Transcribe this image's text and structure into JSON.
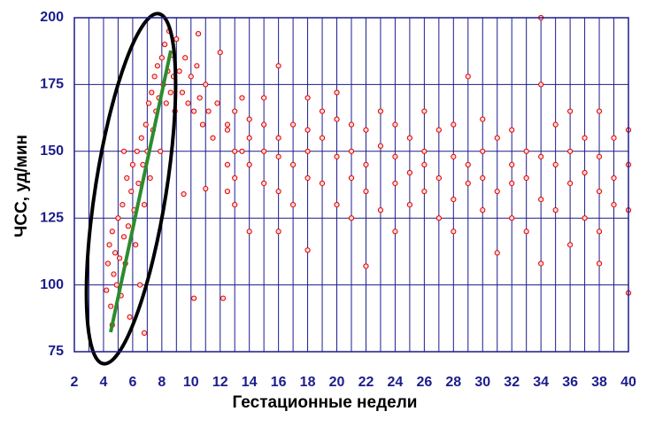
{
  "chart_data": {
    "type": "scatter",
    "x_label": "Гестационные недели",
    "y_label": "ЧСС, уд/мин",
    "xlim": [
      2,
      40
    ],
    "ylim": [
      75,
      200
    ],
    "xticks": [
      2,
      4,
      6,
      8,
      10,
      12,
      14,
      16,
      18,
      20,
      22,
      24,
      26,
      28,
      30,
      32,
      34,
      36,
      38,
      40
    ],
    "x_minor_ticks": [
      3,
      5,
      7,
      9,
      11,
      13,
      15,
      17,
      19,
      21,
      23,
      25,
      27,
      29,
      31,
      33,
      35,
      37,
      39
    ],
    "yticks": [
      75,
      100,
      125,
      150,
      175,
      200
    ],
    "grid": true,
    "color": "#e00000",
    "x": [
      4.2,
      4.3,
      4.4,
      4.5,
      4.6,
      4.7,
      4.8,
      4.9,
      5.0,
      5.1,
      5.2,
      5.3,
      5.4,
      5.5,
      5.6,
      5.7,
      5.8,
      5.9,
      6.0,
      6.1,
      6.2,
      6.3,
      6.4,
      6.5,
      6.6,
      6.7,
      6.8,
      6.9,
      7.0,
      7.1,
      7.2,
      7.3,
      7.4,
      7.5,
      7.6,
      7.7,
      7.8,
      7.9,
      8.0,
      8.1,
      8.2,
      8.3,
      8.4,
      8.5,
      8.6,
      8.7,
      8.8,
      8.9,
      9.0,
      6.8,
      4.6,
      5.4,
      9.2,
      9.4,
      9.6,
      9.8,
      10.0,
      10.2,
      10.4,
      10.6,
      10.8,
      11.0,
      11.2,
      11.5,
      11.8,
      10.5,
      9.5,
      10.2,
      12.0,
      11.0,
      12.5,
      12.2,
      12.5,
      12.5,
      12.5,
      13,
      13,
      13,
      13,
      13.5,
      13.5,
      14,
      14,
      14,
      14,
      15,
      15,
      15,
      15,
      16,
      16,
      16,
      16,
      16,
      17,
      17,
      17,
      18,
      18,
      18,
      18,
      18,
      19,
      19,
      19,
      20,
      20,
      20,
      20,
      21,
      21,
      21,
      21,
      22,
      22,
      22,
      22,
      23,
      23,
      23,
      24,
      24,
      24,
      24,
      25,
      25,
      25,
      26,
      26,
      26,
      26,
      27,
      27,
      27,
      28,
      28,
      28,
      28,
      29,
      29,
      29,
      30,
      30,
      30,
      30,
      31,
      31,
      31,
      32,
      32,
      32,
      32,
      33,
      33,
      33,
      34,
      34,
      34,
      34,
      34,
      35,
      35,
      35,
      36,
      36,
      36,
      36,
      37,
      37,
      37,
      38,
      38,
      38,
      38,
      38,
      39,
      39,
      39,
      40,
      40,
      40,
      40
    ],
    "values": [
      98,
      108,
      115,
      92,
      120,
      104,
      112,
      100,
      125,
      110,
      96,
      130,
      118,
      108,
      140,
      122,
      88,
      135,
      145,
      128,
      115,
      150,
      138,
      100,
      155,
      145,
      130,
      160,
      150,
      168,
      140,
      172,
      158,
      178,
      165,
      182,
      170,
      150,
      185,
      175,
      190,
      168,
      180,
      195,
      172,
      186,
      178,
      165,
      192,
      82,
      85,
      150,
      180,
      172,
      185,
      168,
      178,
      165,
      182,
      170,
      160,
      175,
      165,
      155,
      168,
      194,
      134,
      95,
      187,
      136,
      158,
      95,
      145,
      160,
      135,
      150,
      165,
      130,
      140,
      170,
      150,
      155,
      145,
      162,
      120,
      150,
      170,
      138,
      160,
      182,
      148,
      155,
      120,
      135,
      160,
      145,
      130,
      150,
      170,
      140,
      158,
      113,
      155,
      138,
      165,
      148,
      162,
      130,
      172,
      150,
      140,
      125,
      160,
      145,
      158,
      107,
      135,
      152,
      165,
      128,
      148,
      138,
      160,
      120,
      155,
      142,
      130,
      150,
      165,
      135,
      145,
      140,
      158,
      125,
      148,
      132,
      160,
      120,
      145,
      138,
      178,
      150,
      128,
      140,
      162,
      135,
      155,
      112,
      145,
      125,
      158,
      138,
      140,
      150,
      120,
      200,
      148,
      132,
      175,
      108,
      145,
      160,
      128,
      138,
      150,
      115,
      165,
      142,
      125,
      155,
      135,
      148,
      120,
      165,
      108,
      140,
      130,
      155,
      145,
      128,
      97,
      158
    ]
  }
}
